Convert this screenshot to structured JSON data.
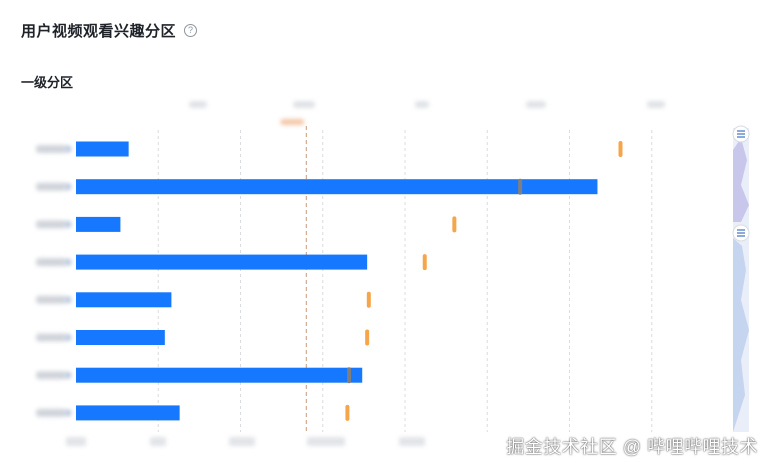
{
  "page": {
    "title": "用户视频观看兴趣分区",
    "help_icon": "?",
    "section_title": "一级分区"
  },
  "colors": {
    "bar": "#1677ff",
    "marker": "#f5a54a",
    "bar_end": "#7f7f7f",
    "grid": "#d9dce1",
    "avg_line": "#c99b7f",
    "scroll_track": "#eaeef8",
    "scroll_fill": "#c5d4ef",
    "scroll_handle": "#4a78c8"
  },
  "chart_data": {
    "type": "bar",
    "orientation": "horizontal",
    "categories": [
      "",
      "",
      "",
      "",
      "",
      "",
      "",
      ""
    ],
    "series": [
      {
        "values": [
          32,
          317,
          27,
          177,
          58,
          54,
          174,
          63
        ]
      },
      {
        "type": "marker",
        "values": [
          331,
          270,
          230,
          212,
          178,
          177,
          166,
          165
        ]
      }
    ],
    "average_line": 140,
    "xlim": [
      0,
      400
    ],
    "grid": true
  },
  "watermark": "掘金技术社区 @ 哔哩哔哩技术"
}
